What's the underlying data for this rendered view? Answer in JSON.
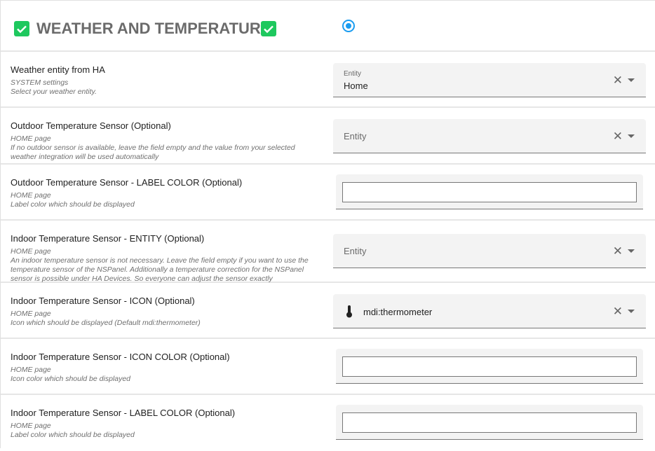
{
  "header": {
    "title": "WEATHER AND TEMPERATURE",
    "accent": "#1ec85e",
    "radio_selected": true
  },
  "rows": [
    {
      "label": "Weather entity from HA",
      "desc": [
        "SYSTEM settings",
        "Select your weather entity."
      ],
      "field": {
        "type": "entity",
        "floating_label": "Entity",
        "value": "Home"
      }
    },
    {
      "label": "Outdoor Temperature Sensor (Optional)",
      "desc": [
        "HOME page",
        "If no outdoor sensor is available, leave the field empty and the value from your selected weather integration will be used automatically"
      ],
      "field": {
        "type": "entity",
        "placeholder": "Entity"
      }
    },
    {
      "label": "Outdoor Temperature Sensor - LABEL COLOR (Optional)",
      "desc": [
        "HOME page",
        "Label color which should be displayed"
      ],
      "field": {
        "type": "color",
        "value": ""
      }
    },
    {
      "label": "Indoor Temperature Sensor - ENTITY (Optional)",
      "desc": [
        "HOME page",
        "An indoor temperature sensor is not necessary. Leave the field empty if you want to use the temperature sensor of the NSPanel. Additionally a temperature correction for the NSPanel sensor is possible under HA Devices. So everyone can adjust the sensor exactly"
      ],
      "field": {
        "type": "entity",
        "placeholder": "Entity"
      }
    },
    {
      "label": "Indoor Temperature Sensor - ICON (Optional)",
      "desc": [
        "HOME page",
        "Icon which should be displayed (Default mdi:thermometer)"
      ],
      "field": {
        "type": "icon",
        "icon": "thermometer-icon",
        "value": "mdi:thermometer"
      }
    },
    {
      "label": "Indoor Temperature Sensor - ICON COLOR (Optional)",
      "desc": [
        "HOME page",
        "Icon color which should be displayed"
      ],
      "field": {
        "type": "color",
        "value": ""
      }
    },
    {
      "label": "Indoor Temperature Sensor - LABEL COLOR (Optional)",
      "desc": [
        "HOME page",
        "Label color which should be displayed"
      ],
      "field": {
        "type": "color",
        "value": ""
      }
    }
  ]
}
